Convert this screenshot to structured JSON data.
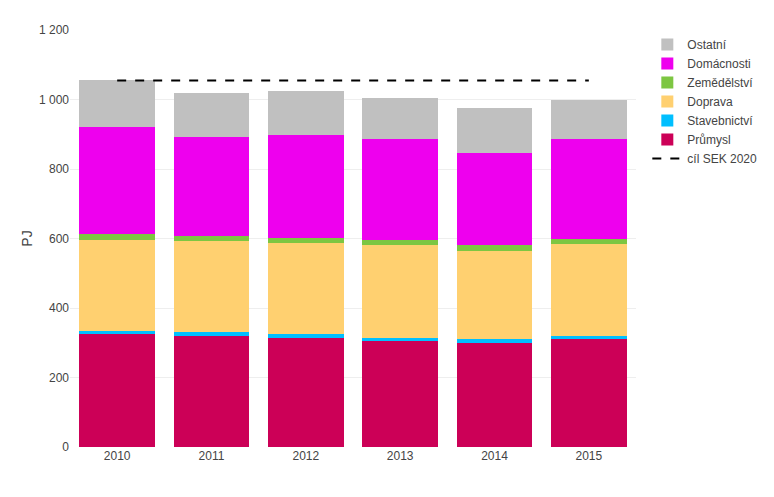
{
  "chart_data": {
    "type": "bar",
    "stacked": true,
    "ylabel": "PJ",
    "categories": [
      "2010",
      "2011",
      "2012",
      "2013",
      "2014",
      "2015"
    ],
    "series": [
      {
        "name": "Průmysl",
        "color": "#CC0057",
        "values": [
          325,
          320,
          315,
          305,
          300,
          310
        ]
      },
      {
        "name": "Stavebnictví",
        "color": "#00BFFF",
        "values": [
          10,
          10,
          10,
          10,
          10,
          10
        ]
      },
      {
        "name": "Doprava",
        "color": "#FFD070",
        "values": [
          262,
          262,
          262,
          265,
          255,
          265
        ]
      },
      {
        "name": "Zemědělství",
        "color": "#7DC642",
        "values": [
          15,
          15,
          15,
          15,
          15,
          15
        ]
      },
      {
        "name": "Domácnosti",
        "color": "#EE00EE",
        "values": [
          310,
          285,
          295,
          290,
          265,
          285
        ]
      },
      {
        "name": "Ostatní",
        "color": "#C0C0C0",
        "values": [
          133,
          128,
          128,
          120,
          130,
          115
        ]
      },
      {
        "name": "cíl SEK 2020",
        "type": "line",
        "line_style": "dashed",
        "color": "#000000",
        "values": [
          1055,
          1055,
          1055,
          1055,
          1055,
          1055
        ]
      }
    ],
    "ylim": [
      0,
      1200
    ],
    "yticks": [
      0,
      200,
      400,
      600,
      800,
      {
        "value": 1000,
        "label": "1 000"
      },
      {
        "value": 1200,
        "label": "1 200"
      }
    ],
    "grid": true,
    "legend": "right"
  }
}
